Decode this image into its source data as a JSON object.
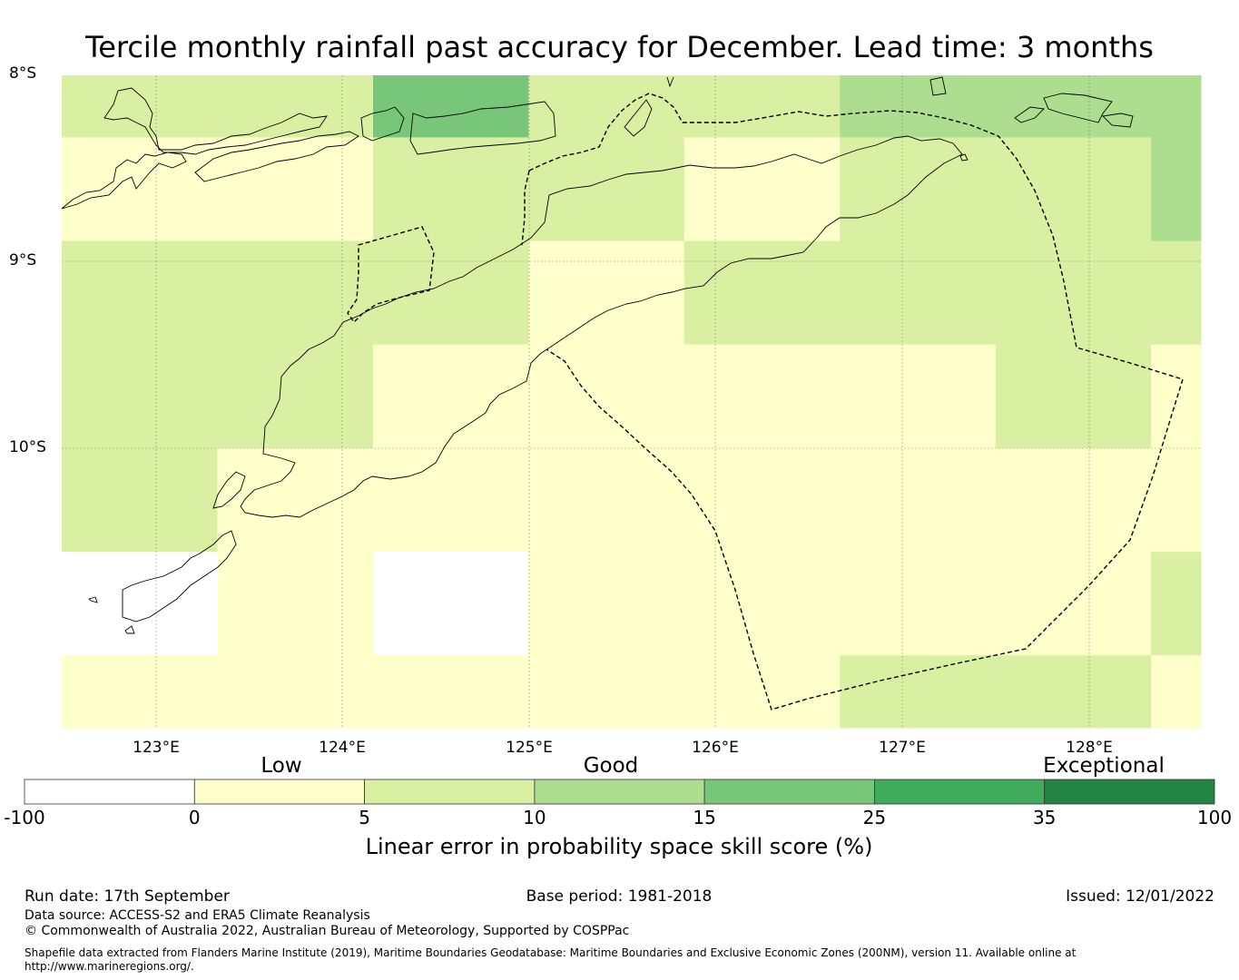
{
  "title": "Tercile monthly rainfall past accuracy for December. Lead time: 3 months",
  "map": {
    "lat_labels": [
      "8°S",
      "9°S",
      "10°S"
    ],
    "lon_labels": [
      "123°E",
      "124°E",
      "125°E",
      "126°E",
      "127°E",
      "128°E"
    ],
    "extent": {
      "lon_min": 122.5,
      "lon_max": 128.6,
      "lat_min": -11.5,
      "lat_max": -8.0
    },
    "grid_lons": [
      122.5,
      123.333,
      124.167,
      125.0,
      125.833,
      126.667,
      127.5,
      128.333,
      128.6
    ],
    "grid_lats": [
      -8.0,
      -8.333,
      -8.889,
      -9.444,
      -10.0,
      -10.556,
      -11.111,
      -11.5
    ],
    "cells": [
      [
        2,
        2,
        4,
        2,
        2,
        3,
        3,
        3
      ],
      [
        1,
        1,
        2,
        2,
        1,
        2,
        2,
        3
      ],
      [
        2,
        2,
        2,
        1,
        2,
        2,
        2,
        2
      ],
      [
        2,
        2,
        1,
        1,
        1,
        1,
        2,
        1
      ],
      [
        2,
        1,
        1,
        1,
        1,
        1,
        1,
        1
      ],
      [
        0,
        1,
        0,
        1,
        1,
        1,
        1,
        2
      ],
      [
        1,
        1,
        1,
        1,
        1,
        2,
        2,
        1
      ]
    ]
  },
  "colorbar": {
    "categories": [
      "Low",
      "Good",
      "Exceptional"
    ],
    "ticks": [
      "-100",
      "0",
      "5",
      "10",
      "15",
      "25",
      "35",
      "100"
    ],
    "colors": [
      "#ffffff",
      "#ffffcc",
      "#d9f0a3",
      "#addd8e",
      "#78c679",
      "#41ab5d",
      "#238443"
    ],
    "label": "Linear error in probability space skill score (%)"
  },
  "footer": {
    "run_date": "Run date: 17th September",
    "base_period": "Base period: 1981-2018",
    "issued": "Issued: 12/01/2022",
    "data_source": "Data source: ACCESS-S2 and ERA5 Climate Reanalysis",
    "copyright": "© Commonwealth of Australia 2022, Australian Bureau of Meteorology, Supported by COSPPac",
    "shapefile_line1": "Shapefile data extracted from Flanders Marine Institute (2019), Maritime Boundaries Geodatabase: Maritime Boundaries and Exclusive Economic Zones (200NM), version 11. Available online at",
    "shapefile_line2": "http://www.marineregions.org/."
  }
}
